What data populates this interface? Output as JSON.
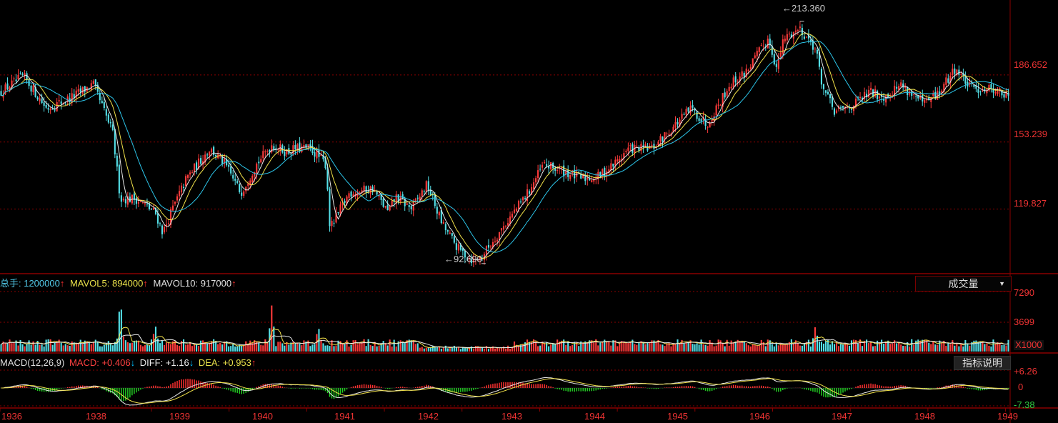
{
  "chart_data": [
    {
      "type": "candlestick",
      "name": "price",
      "x_range": [
        1936.0,
        1949.0
      ],
      "x_ticks": [
        "1936",
        "1938",
        "1939",
        "1940",
        "1941",
        "1942",
        "1943",
        "1944",
        "1945",
        "1946",
        "1947",
        "1948",
        "1949"
      ],
      "x_tick_values": [
        1936.0,
        1937.95,
        1938.95,
        1939.95,
        1940.95,
        1941.95,
        1942.95,
        1943.95,
        1944.95,
        1945.95,
        1946.95,
        1947.95,
        1948.95
      ],
      "ylim": [
        88,
        224
      ],
      "y_ticks": [
        "186.652",
        "153.239",
        "119.827"
      ],
      "y_tick_values": [
        186.652,
        153.239,
        119.827
      ],
      "annotations": [
        {
          "text": "213.360",
          "x": 1946.3,
          "y": 213.36,
          "kind": "high"
        },
        {
          "text": "92.690",
          "x": 1942.2,
          "y": 92.69,
          "kind": "low"
        }
      ],
      "series": [
        {
          "x": [
            1936.0,
            1936.3,
            1936.6,
            1936.9,
            1937.2,
            1937.45,
            1937.55,
            1937.75,
            1938.0,
            1938.1,
            1938.2,
            1938.4,
            1938.7,
            1938.9,
            1939.1,
            1939.3,
            1939.5,
            1939.7,
            1939.8,
            1940.0,
            1940.2,
            1940.25,
            1940.5,
            1940.8,
            1941.0,
            1941.1,
            1941.3,
            1941.5,
            1941.7,
            1941.9,
            1942.1,
            1942.2,
            1942.5,
            1942.8,
            1943.0,
            1943.3,
            1943.5,
            1943.7,
            1943.9,
            1944.1,
            1944.4,
            1944.6,
            1944.9,
            1945.1,
            1945.4,
            1945.6,
            1945.9,
            1946.0,
            1946.1,
            1946.3,
            1946.5,
            1946.6,
            1946.75,
            1947.0,
            1947.2,
            1947.4,
            1947.6,
            1947.9,
            1948.1,
            1948.3,
            1948.5,
            1948.8,
            1949.0
          ],
          "y": [
            178,
            186,
            170,
            175,
            182,
            158,
            125,
            125,
            118,
            108,
            118,
            135,
            150,
            142,
            128,
            142,
            152,
            148,
            150,
            150,
            142,
            110,
            128,
            130,
            118,
            126,
            120,
            132,
            112,
            100,
            94,
            96,
            112,
            128,
            142,
            138,
            135,
            136,
            142,
            150,
            150,
            158,
            170,
            162,
            182,
            188,
            205,
            190,
            205,
            210,
            200,
            180,
            168,
            172,
            178,
            176,
            182,
            172,
            178,
            190,
            180,
            180,
            175
          ]
        }
      ]
    },
    {
      "type": "bar",
      "name": "volume",
      "unit": "X1000",
      "ylim": [
        0,
        7290
      ],
      "y_ticks": [
        "7290",
        "3699"
      ],
      "y_tick_values": [
        7290,
        3699
      ],
      "spikes": [
        {
          "x": 1937.55,
          "value": 5900
        },
        {
          "x": 1939.5,
          "value": 5000
        },
        {
          "x": 1938.0,
          "value": 2600
        },
        {
          "x": 1940.1,
          "value": 2400
        },
        {
          "x": 1946.5,
          "value": 2400
        }
      ]
    },
    {
      "type": "line",
      "name": "macd",
      "ylim": [
        -7.38,
        6.26
      ],
      "y_ticks": [
        "+6.26",
        "0",
        "-7.38"
      ],
      "y_tick_values": [
        6.26,
        0,
        -7.38
      ]
    }
  ],
  "volume_legend": {
    "total_label": "总手: 1200000",
    "total_color": "#52c9e8",
    "ma5_label": "MAVOL5: 894000",
    "ma5_color": "#e8e04a",
    "ma10_label": "MAVOL10: 917000",
    "ma10_color": "#e0e0e0",
    "up_arrow": "↑",
    "up_color": "#ff3030"
  },
  "macd_legend": {
    "title": "MACD(12,26,9)",
    "macd_label": "MACD: +0.406",
    "macd_color": "#ff4040",
    "diff_label": "DIFF: +1.16",
    "dea_label": "DEA: +0.953",
    "dea_color": "#e8e04a",
    "down_arrow": "↓",
    "down_color": "#00bfff",
    "up_arrow": "↑"
  },
  "volume_dropdown": {
    "label": "成交量",
    "arrow": "▼"
  },
  "indicator_button": {
    "label": "指标说明"
  },
  "colors": {
    "up": "#ff3b3b",
    "down": "#54e0e8",
    "ma_yellow": "#f2e24a",
    "ma_white": "#e8e8e8",
    "ma_cyan": "#2cc4e8",
    "grid": "#8a0000",
    "axis_text": "#ff3333"
  }
}
